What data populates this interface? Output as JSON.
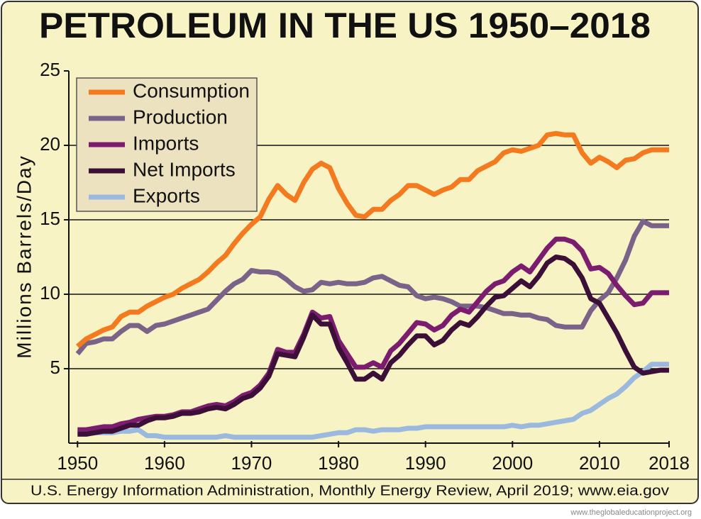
{
  "chart_data": {
    "type": "line",
    "title": "PETROLEUM IN THE US 1950–2018",
    "y_label": "Millions Barrels/Day",
    "source": "U.S. Energy Information Administration, Monthly Energy Review, April 2019; www.eia.gov",
    "x": [
      1950,
      1951,
      1952,
      1953,
      1954,
      1955,
      1956,
      1957,
      1958,
      1959,
      1960,
      1961,
      1962,
      1963,
      1964,
      1965,
      1966,
      1967,
      1968,
      1969,
      1970,
      1971,
      1972,
      1973,
      1974,
      1975,
      1976,
      1977,
      1978,
      1979,
      1980,
      1981,
      1982,
      1983,
      1984,
      1985,
      1986,
      1987,
      1988,
      1989,
      1990,
      1991,
      1992,
      1993,
      1994,
      1995,
      1996,
      1997,
      1998,
      1999,
      2000,
      2001,
      2002,
      2003,
      2004,
      2005,
      2006,
      2007,
      2008,
      2009,
      2010,
      2011,
      2012,
      2013,
      2014,
      2015,
      2016,
      2017,
      2018
    ],
    "series": [
      {
        "name": "Consumption",
        "color": "#f37a1f",
        "values": [
          6.5,
          7.0,
          7.3,
          7.6,
          7.8,
          8.5,
          8.8,
          8.8,
          9.2,
          9.5,
          9.8,
          10.0,
          10.4,
          10.7,
          11.0,
          11.5,
          12.1,
          12.6,
          13.4,
          14.1,
          14.7,
          15.2,
          16.4,
          17.3,
          16.7,
          16.3,
          17.5,
          18.4,
          18.8,
          18.5,
          17.1,
          16.1,
          15.3,
          15.2,
          15.7,
          15.7,
          16.3,
          16.7,
          17.3,
          17.3,
          17.0,
          16.7,
          17.0,
          17.2,
          17.7,
          17.7,
          18.3,
          18.6,
          18.9,
          19.5,
          19.7,
          19.6,
          19.8,
          20.0,
          20.7,
          20.8,
          20.7,
          20.7,
          19.5,
          18.8,
          19.2,
          18.9,
          18.5,
          19.0,
          19.1,
          19.5,
          19.7,
          19.7,
          19.7
        ]
      },
      {
        "name": "Production",
        "color": "#7a6288",
        "values": [
          6.0,
          6.7,
          6.8,
          7.0,
          7.0,
          7.5,
          7.9,
          7.9,
          7.5,
          7.9,
          8.0,
          8.2,
          8.4,
          8.6,
          8.8,
          9.0,
          9.6,
          10.2,
          10.7,
          11.0,
          11.6,
          11.5,
          11.5,
          11.4,
          11.0,
          10.5,
          10.2,
          10.3,
          10.8,
          10.7,
          10.8,
          10.7,
          10.7,
          10.8,
          11.1,
          11.2,
          10.9,
          10.6,
          10.5,
          9.9,
          9.7,
          9.8,
          9.7,
          9.5,
          9.2,
          9.2,
          9.2,
          9.1,
          8.9,
          8.7,
          8.7,
          8.6,
          8.6,
          8.4,
          8.3,
          7.9,
          7.8,
          7.8,
          7.8,
          8.9,
          9.6,
          10.1,
          11.1,
          12.3,
          13.9,
          14.9,
          14.6,
          14.6,
          14.6
        ]
      },
      {
        "name": "Imports",
        "color": "#7b1c6e",
        "values": [
          0.9,
          0.9,
          1.0,
          1.1,
          1.1,
          1.3,
          1.4,
          1.6,
          1.7,
          1.8,
          1.8,
          1.9,
          2.1,
          2.1,
          2.3,
          2.5,
          2.6,
          2.5,
          2.8,
          3.2,
          3.4,
          3.9,
          4.7,
          6.3,
          6.1,
          6.1,
          7.3,
          8.8,
          8.4,
          8.5,
          6.9,
          6.0,
          5.1,
          5.1,
          5.4,
          5.1,
          6.2,
          6.7,
          7.4,
          8.1,
          8.0,
          7.6,
          7.9,
          8.6,
          9.0,
          8.8,
          9.5,
          10.2,
          10.7,
          10.9,
          11.5,
          11.9,
          11.5,
          12.3,
          13.1,
          13.7,
          13.7,
          13.5,
          12.9,
          11.7,
          11.8,
          11.4,
          10.6,
          9.9,
          9.3,
          9.4,
          10.1,
          10.1,
          10.1
        ]
      },
      {
        "name": "Net Imports",
        "color": "#3b0f38",
        "values": [
          0.6,
          0.6,
          0.7,
          0.8,
          0.8,
          1.0,
          1.2,
          1.2,
          1.5,
          1.7,
          1.7,
          1.8,
          2.0,
          2.0,
          2.1,
          2.3,
          2.4,
          2.3,
          2.6,
          3.0,
          3.2,
          3.7,
          4.5,
          6.0,
          5.9,
          5.8,
          7.1,
          8.6,
          8.0,
          8.0,
          6.4,
          5.4,
          4.3,
          4.3,
          4.7,
          4.3,
          5.4,
          5.9,
          6.6,
          7.2,
          7.2,
          6.6,
          6.9,
          7.6,
          8.1,
          7.9,
          8.5,
          9.2,
          9.8,
          9.9,
          10.4,
          10.9,
          10.5,
          11.2,
          12.1,
          12.5,
          12.4,
          12.0,
          11.1,
          9.7,
          9.4,
          8.4,
          7.4,
          6.2,
          5.1,
          4.7,
          4.8,
          4.9,
          4.9
        ]
      },
      {
        "name": "Exports",
        "color": "#9bb8df",
        "values": [
          0.7,
          0.7,
          0.7,
          0.7,
          0.7,
          0.8,
          0.8,
          0.9,
          0.5,
          0.5,
          0.4,
          0.4,
          0.4,
          0.4,
          0.4,
          0.4,
          0.4,
          0.5,
          0.4,
          0.4,
          0.4,
          0.4,
          0.4,
          0.4,
          0.4,
          0.4,
          0.4,
          0.4,
          0.5,
          0.6,
          0.7,
          0.7,
          0.9,
          0.9,
          0.8,
          0.9,
          0.9,
          0.9,
          1.0,
          1.0,
          1.1,
          1.1,
          1.1,
          1.1,
          1.1,
          1.1,
          1.1,
          1.1,
          1.1,
          1.1,
          1.2,
          1.1,
          1.2,
          1.2,
          1.3,
          1.4,
          1.5,
          1.6,
          2.0,
          2.2,
          2.6,
          3.0,
          3.3,
          3.8,
          4.4,
          4.8,
          5.3,
          5.3,
          5.3
        ]
      }
    ],
    "xlim": [
      1949,
      2018
    ],
    "xticks": [
      1950,
      1960,
      1970,
      1980,
      1990,
      2000,
      2010,
      2018
    ],
    "ylim": [
      0,
      25
    ],
    "yticks": [
      5,
      10,
      15,
      20,
      25
    ],
    "grid": true,
    "legend": "top-left"
  },
  "watermark": "www.theglobaleducationproject.org"
}
